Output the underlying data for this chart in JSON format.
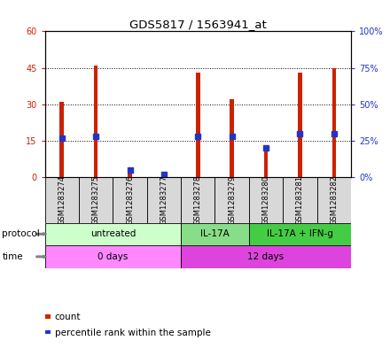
{
  "title": "GDS5817 / 1563941_at",
  "samples": [
    "GSM1283274",
    "GSM1283275",
    "GSM1283276",
    "GSM1283277",
    "GSM1283278",
    "GSM1283279",
    "GSM1283280",
    "GSM1283281",
    "GSM1283282"
  ],
  "counts": [
    31,
    46,
    2,
    1,
    43,
    32,
    13,
    43,
    45
  ],
  "percentile": [
    27,
    28,
    5,
    2,
    28,
    28,
    20,
    30,
    30
  ],
  "ylim_left": [
    0,
    60
  ],
  "ylim_right": [
    0,
    100
  ],
  "yticks_left": [
    0,
    15,
    30,
    45,
    60
  ],
  "yticks_right": [
    0,
    25,
    50,
    75,
    100
  ],
  "ytick_labels_left": [
    "0",
    "15",
    "30",
    "45",
    "60"
  ],
  "ytick_labels_right": [
    "0",
    "25",
    "50",
    "75",
    "100%"
  ],
  "protocol_groups": [
    {
      "label": "untreated",
      "start": 0,
      "end": 4,
      "color": "#ccffcc"
    },
    {
      "label": "IL-17A",
      "start": 4,
      "end": 6,
      "color": "#88dd88"
    },
    {
      "label": "IL-17A + IFN-g",
      "start": 6,
      "end": 9,
      "color": "#44cc44"
    }
  ],
  "time_groups": [
    {
      "label": "0 days",
      "start": 0,
      "end": 4,
      "color": "#ff88ff"
    },
    {
      "label": "12 days",
      "start": 4,
      "end": 9,
      "color": "#dd44dd"
    }
  ],
  "bar_color": "#cc2200",
  "percentile_color": "#2233cc",
  "tick_color_left": "#cc2200",
  "tick_color_right": "#2233cc",
  "bar_width": 0.12,
  "pct_marker_size": 4.5,
  "label_protocol": "protocol",
  "label_time": "time",
  "legend_count": "count",
  "legend_pct": "percentile rank within the sample",
  "grid_yticks": [
    15,
    30,
    45
  ]
}
